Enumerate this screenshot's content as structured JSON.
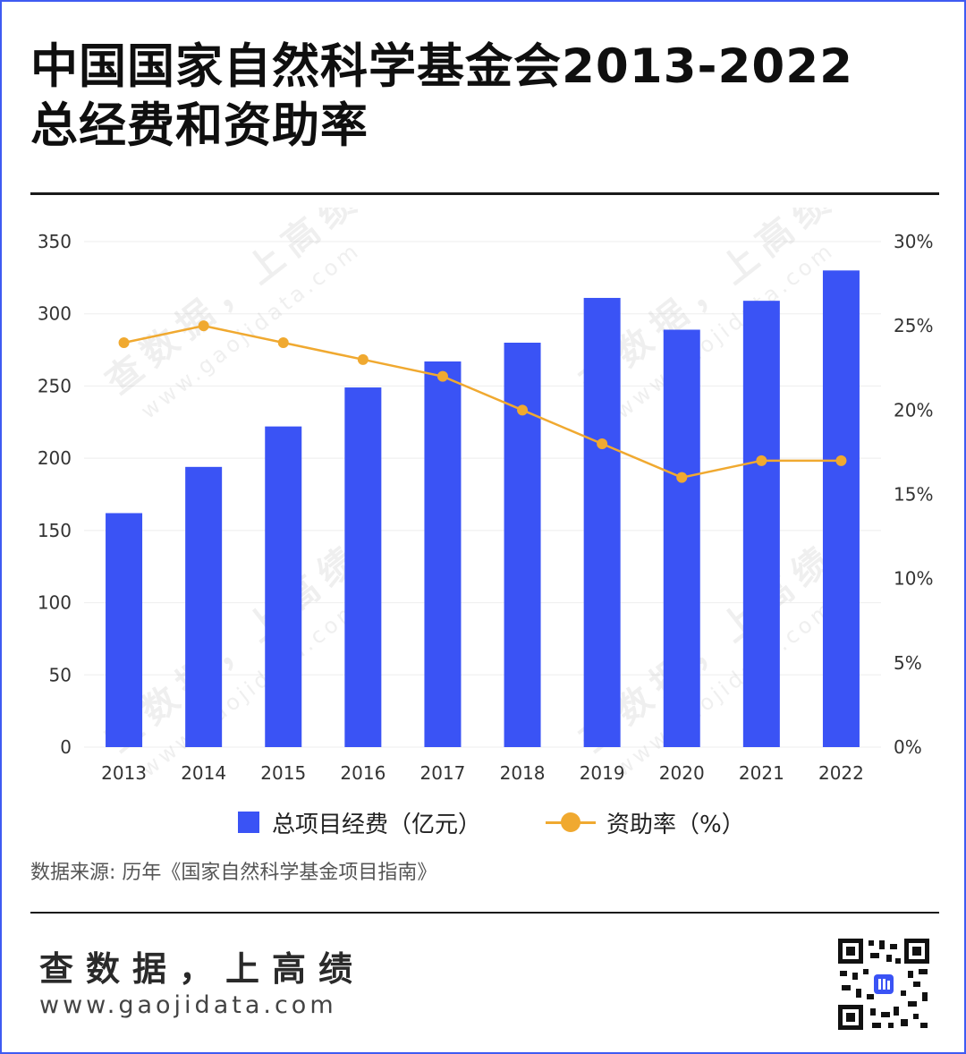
{
  "title_lines": [
    "中国国家自然科学基金会2013-2022",
    "总经费和资助率"
  ],
  "legend": {
    "bar_label": "总项目经费（亿元）",
    "line_label": "资助率（%）"
  },
  "source": "数据来源: 历年《国家自然科学基金项目指南》",
  "brand": "查数据，上高绩",
  "site": "www.gaojidata.com",
  "watermark_text": "查数据，上高绩",
  "watermark_site": "www.gaojidata.com",
  "colors": {
    "bar": "#3a53f5",
    "line": "#f0a930",
    "frame": "#3f5bf2"
  },
  "qr_icon": "qr-code-icon",
  "chart_data": {
    "type": "bar",
    "categories": [
      "2013",
      "2014",
      "2015",
      "2016",
      "2017",
      "2018",
      "2019",
      "2020",
      "2021",
      "2022"
    ],
    "series": [
      {
        "name": "总项目经费（亿元）",
        "type": "bar",
        "axis": "left",
        "values": [
          162,
          194,
          222,
          249,
          267,
          280,
          311,
          289,
          309,
          330
        ]
      },
      {
        "name": "资助率（%）",
        "type": "line",
        "axis": "right",
        "values": [
          24,
          25,
          24,
          23,
          22,
          20,
          18,
          16,
          17,
          17
        ]
      }
    ],
    "y_left": {
      "ylim": [
        0,
        350
      ],
      "ticks": [
        0,
        50,
        100,
        150,
        200,
        250,
        300,
        350
      ]
    },
    "y_right": {
      "ylim": [
        0,
        30
      ],
      "ticks": [
        0,
        5,
        10,
        15,
        20,
        25,
        30
      ],
      "tick_suffix": "%"
    },
    "xlabel": "",
    "ylabel": "",
    "grid": true,
    "legend_position": "bottom-center"
  }
}
